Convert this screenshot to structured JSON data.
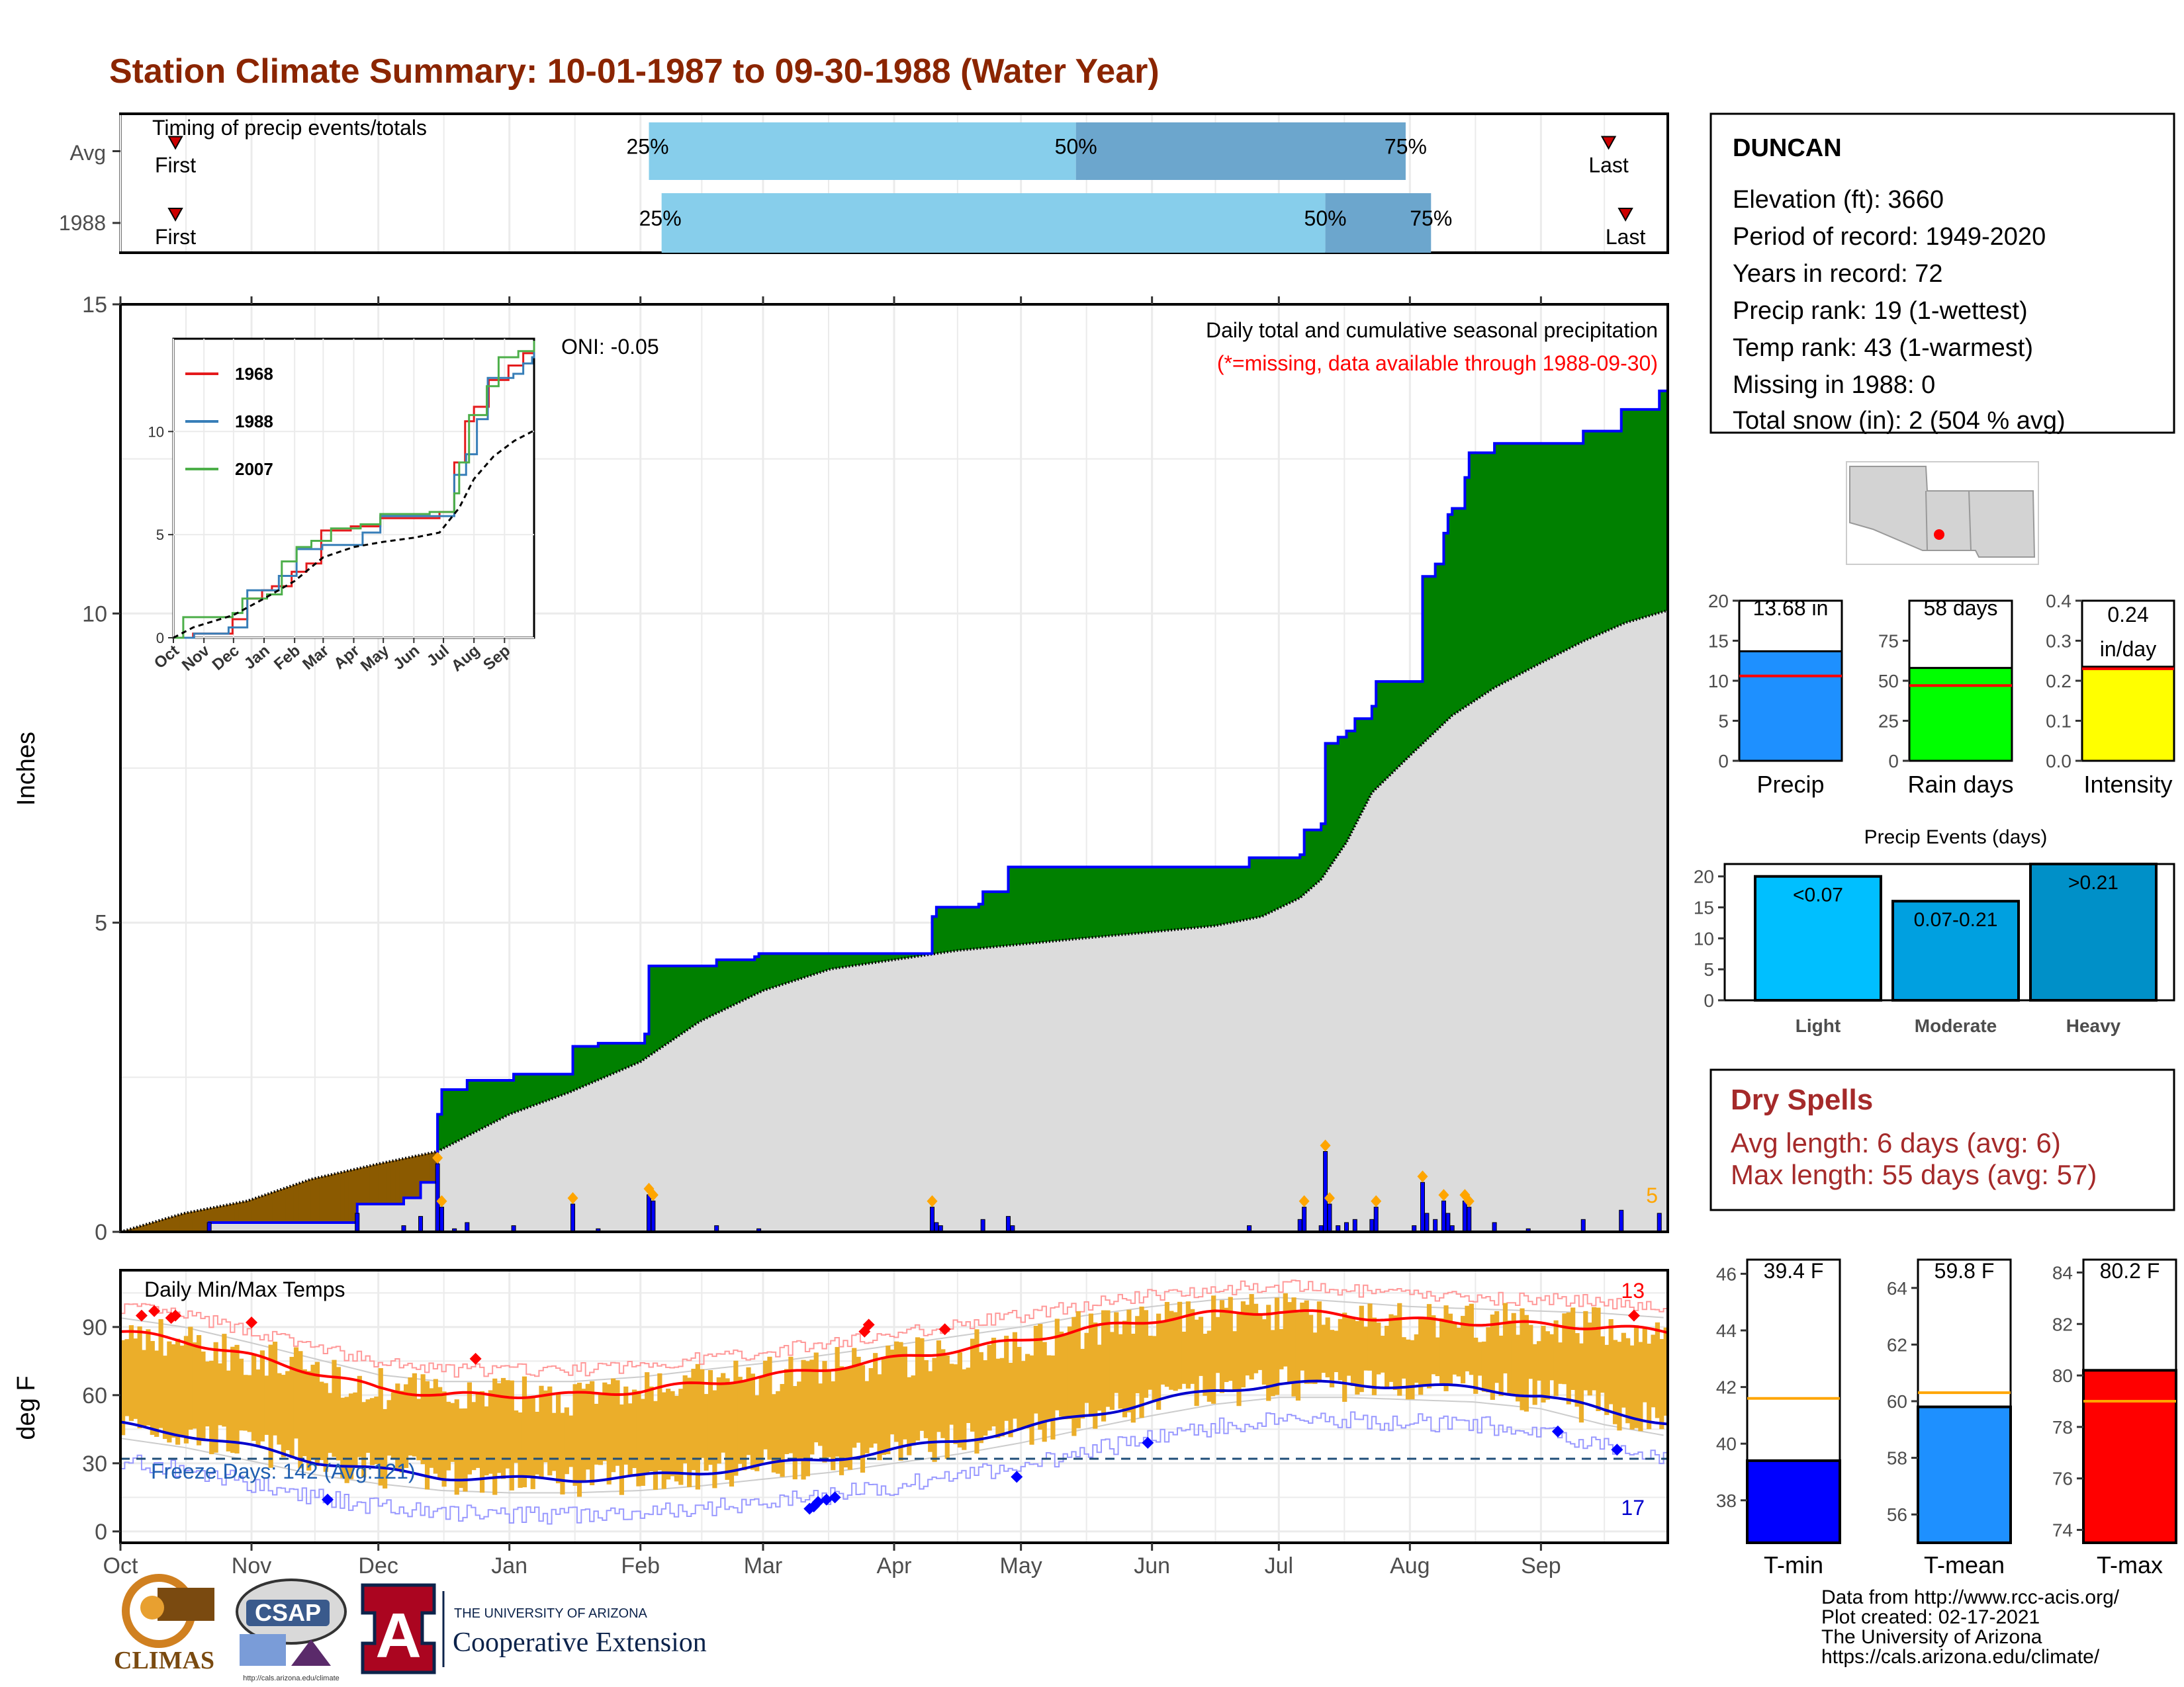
{
  "title": "Station Climate Summary: 10-01-1987 to 09-30-1988 (Water Year)",
  "colors": {
    "title": "#8B2500",
    "precip_obs": "#0000FF",
    "avg_fill": "#DCDCDC",
    "surplus": "#008000",
    "deficit": "#8B5A00",
    "temp_bars": "#EBAE2A",
    "tmax_avg": "#FF0000",
    "tmin_avg": "#0000CD",
    "dry_spells": "#A52A2A"
  },
  "timing_panel": {
    "title": "Timing of precip events/totals",
    "rows": [
      {
        "label": "Avg",
        "first": "First",
        "last": "Last",
        "p25_label": "25%",
        "p50_label": "50%",
        "p75_label": "75%",
        "first_day": 13,
        "p25_day": 125,
        "p50_day": 226,
        "p75_day": 304,
        "last_day": 352
      },
      {
        "label": "1988",
        "first": "First",
        "last": "Last",
        "p25_label": "25%",
        "p50_label": "50%",
        "p75_label": "75%",
        "first_day": 13,
        "p25_day": 128,
        "p50_day": 285,
        "p75_day": 310,
        "last_day": 356
      }
    ]
  },
  "precip_chart": {
    "ylabel": "Inches",
    "yticks": [
      "0",
      "5",
      "10",
      "15"
    ],
    "ylim": [
      0,
      15
    ],
    "title_line1": "Daily total and cumulative seasonal precipitation",
    "title_line2": "(*=missing, data available through 1988-09-30)",
    "oni": "ONI: -0.05",
    "corner_number": "5"
  },
  "month_labels": [
    "Oct",
    "Nov",
    "Dec",
    "Jan",
    "Feb",
    "Mar",
    "Apr",
    "May",
    "Jun",
    "Jul",
    "Aug",
    "Sep"
  ],
  "month_start_days": [
    0,
    31,
    61,
    92,
    123,
    152,
    183,
    213,
    244,
    274,
    305,
    336
  ],
  "inset": {
    "legend": [
      "1968",
      "1988",
      "2007"
    ],
    "legend_colors": [
      "#E41A1C",
      "#377EB8",
      "#4DAF4A"
    ],
    "yticks": [
      "0",
      "5",
      "10"
    ],
    "xticks": [
      "Oct",
      "Nov",
      "Dec",
      "Jan",
      "Feb",
      "Mar",
      "Apr",
      "May",
      "Jun",
      "Jul",
      "Aug",
      "Sep"
    ]
  },
  "temp_chart": {
    "title": "Daily Min/Max Temps",
    "ylabel": "deg F",
    "yticks": [
      "0",
      "30",
      "60",
      "90"
    ],
    "ylim": [
      -5,
      115
    ],
    "freeze_label": "Freeze Days: 142 (Avg:121)",
    "freeze_line": 32,
    "count_high": "13",
    "count_low": "17"
  },
  "station": {
    "name": "DUNCAN",
    "lines": [
      "Elevation (ft): 3660",
      "Period of record: 1949-2020",
      "Years in record: 72",
      "Precip rank: 19 (1-wettest)",
      "Temp rank: 43 (1-warmest)",
      "Missing in 1988: 0",
      "Total snow (in): 2 (504 % avg)"
    ]
  },
  "mini_bars": [
    {
      "label": "Precip",
      "value_text": "13.68 in",
      "value": 13.68,
      "avg": 10.6,
      "yticks": [
        "0",
        "5",
        "10",
        "15",
        "20"
      ],
      "ylim": [
        0,
        20
      ],
      "color": "#1E90FF"
    },
    {
      "label": "Rain days",
      "value_text": "58 days",
      "value": 58,
      "avg": 47,
      "yticks": [
        "0",
        "25",
        "50",
        "75"
      ],
      "ylim": [
        0,
        100
      ],
      "color": "#00FF00"
    },
    {
      "label": "Intensity",
      "value_text_1": "0.24",
      "value_text_2": "in/day",
      "value": 0.235,
      "avg": 0.23,
      "yticks": [
        "0.0",
        "0.1",
        "0.2",
        "0.3",
        "0.4"
      ],
      "ylim": [
        0,
        0.4
      ],
      "color": "#FFFF00"
    }
  ],
  "precip_events": {
    "title": "Precip Events (days)",
    "yticks": [
      "0",
      "5",
      "10",
      "15",
      "20"
    ],
    "ylim": [
      0,
      22
    ],
    "categories": [
      "Light",
      "Moderate",
      "Heavy"
    ],
    "bar_labels": [
      "<0.07",
      "0.07-0.21",
      ">0.21"
    ],
    "values": [
      20,
      16,
      22
    ],
    "colors": [
      "#00BFFF",
      "#00A0E0",
      "#0090C8"
    ]
  },
  "dry_spells": {
    "title": "Dry Spells",
    "line1": "Avg length: 6 days (avg: 6)",
    "line2": "Max length: 55 days (avg: 57)"
  },
  "temp_bars": [
    {
      "label": "T-min",
      "value_text": "39.4 F",
      "value": 39.4,
      "avg": 41.6,
      "yticks": [
        "38",
        "40",
        "42",
        "44",
        "46"
      ],
      "ylim": [
        36.5,
        46.5
      ],
      "color": "#0000FF"
    },
    {
      "label": "T-mean",
      "value_text": "59.8 F",
      "value": 59.8,
      "avg": 60.3,
      "yticks": [
        "56",
        "58",
        "60",
        "62",
        "64"
      ],
      "ylim": [
        55,
        65
      ],
      "color": "#1E90FF"
    },
    {
      "label": "T-max",
      "value_text": "80.2 F",
      "value": 80.2,
      "avg": 79.0,
      "yticks": [
        "74",
        "76",
        "78",
        "80",
        "82",
        "84"
      ],
      "ylim": [
        73.5,
        84.5
      ],
      "color": "#FF0000"
    }
  ],
  "footer": {
    "lines": [
      "Data from http://www.rcc-acis.org/",
      "Plot created: 02-17-2021",
      "The University of Arizona",
      "https://cals.arizona.edu/climate/"
    ],
    "logo_climas": "CLIMAS",
    "logo_csap": "CSAP",
    "logo_csap_url": "http://cals.arizona.edu/climate",
    "ua_line1": "THE UNIVERSITY OF ARIZONA",
    "ua_line2": "Cooperative Extension",
    "ua_letter": "A"
  },
  "chart_data": [
    {
      "type": "area",
      "title": "Daily total and cumulative seasonal precipitation",
      "ylabel": "Inches",
      "ylim": [
        0,
        15
      ],
      "x_unit": "day of water year (0 = Oct 1)",
      "series": [
        {
          "name": "cumulative observed",
          "points": [
            [
              0,
              0
            ],
            [
              20,
              0.0
            ],
            [
              21,
              0.15
            ],
            [
              55,
              0.15
            ],
            [
              56,
              0.45
            ],
            [
              66,
              0.45
            ],
            [
              67,
              0.55
            ],
            [
              71,
              0.8
            ],
            [
              75,
              1.9
            ],
            [
              76,
              2.3
            ],
            [
              81,
              2.3
            ],
            [
              82,
              2.45
            ],
            [
              92,
              2.45
            ],
            [
              93,
              2.55
            ],
            [
              106,
              2.55
            ],
            [
              107,
              3.0
            ],
            [
              113,
              3.05
            ],
            [
              124,
              3.2
            ],
            [
              125,
              4.3
            ],
            [
              140,
              4.3
            ],
            [
              141,
              4.4
            ],
            [
              150,
              4.45
            ],
            [
              151,
              4.5
            ],
            [
              191,
              4.5
            ],
            [
              192,
              5.1
            ],
            [
              193,
              5.25
            ],
            [
              203,
              5.3
            ],
            [
              204,
              5.5
            ],
            [
              209,
              5.5
            ],
            [
              210,
              5.9
            ],
            [
              266,
              5.9
            ],
            [
              267,
              6.05
            ],
            [
              279,
              6.1
            ],
            [
              280,
              6.5
            ],
            [
              284,
              6.6
            ],
            [
              285,
              7.9
            ],
            [
              288,
              8.0
            ],
            [
              290,
              8.1
            ],
            [
              292,
              8.3
            ],
            [
              296,
              8.5
            ],
            [
              297,
              8.9
            ],
            [
              307,
              8.9
            ],
            [
              308,
              10.6
            ],
            [
              311,
              10.8
            ],
            [
              313,
              11.3
            ],
            [
              314,
              11.6
            ],
            [
              315,
              11.7
            ],
            [
              318,
              12.2
            ],
            [
              319,
              12.6
            ],
            [
              325,
              12.75
            ],
            [
              345,
              12.75
            ],
            [
              346,
              12.95
            ],
            [
              354,
              12.95
            ],
            [
              355,
              13.3
            ],
            [
              363,
              13.3
            ],
            [
              364,
              13.6
            ],
            [
              366,
              13.6
            ]
          ]
        },
        {
          "name": "cumulative average",
          "points": [
            [
              0,
              0
            ],
            [
              15,
              0.3
            ],
            [
              30,
              0.5
            ],
            [
              45,
              0.85
            ],
            [
              61,
              1.1
            ],
            [
              75,
              1.3
            ],
            [
              92,
              1.9
            ],
            [
              106,
              2.25
            ],
            [
              123,
              2.75
            ],
            [
              137,
              3.4
            ],
            [
              152,
              3.9
            ],
            [
              168,
              4.25
            ],
            [
              183,
              4.4
            ],
            [
              198,
              4.55
            ],
            [
              213,
              4.65
            ],
            [
              228,
              4.75
            ],
            [
              244,
              4.85
            ],
            [
              259,
              4.95
            ],
            [
              270,
              5.1
            ],
            [
              279,
              5.4
            ],
            [
              284,
              5.7
            ],
            [
              290,
              6.3
            ],
            [
              296,
              7.1
            ],
            [
              305,
              7.7
            ],
            [
              315,
              8.35
            ],
            [
              325,
              8.8
            ],
            [
              336,
              9.2
            ],
            [
              346,
              9.55
            ],
            [
              356,
              9.85
            ],
            [
              366,
              10.05
            ]
          ]
        },
        {
          "name": "daily precip",
          "points": [
            [
              21,
              0.15
            ],
            [
              56,
              0.3
            ],
            [
              67,
              0.1
            ],
            [
              71,
              0.25
            ],
            [
              75,
              1.1
            ],
            [
              76,
              0.4
            ],
            [
              79,
              0.05
            ],
            [
              82,
              0.15
            ],
            [
              93,
              0.1
            ],
            [
              107,
              0.45
            ],
            [
              113,
              0.05
            ],
            [
              125,
              0.6
            ],
            [
              126,
              0.5
            ],
            [
              141,
              0.1
            ],
            [
              151,
              0.05
            ],
            [
              192,
              0.4
            ],
            [
              193,
              0.15
            ],
            [
              194,
              0.1
            ],
            [
              204,
              0.2
            ],
            [
              210,
              0.25
            ],
            [
              211,
              0.1
            ],
            [
              267,
              0.1
            ],
            [
              279,
              0.2
            ],
            [
              280,
              0.4
            ],
            [
              284,
              0.1
            ],
            [
              285,
              1.3
            ],
            [
              286,
              0.45
            ],
            [
              288,
              0.1
            ],
            [
              290,
              0.15
            ],
            [
              292,
              0.2
            ],
            [
              296,
              0.2
            ],
            [
              297,
              0.4
            ],
            [
              306,
              0.1
            ],
            [
              308,
              0.8
            ],
            [
              309,
              0.3
            ],
            [
              311,
              0.2
            ],
            [
              313,
              0.5
            ],
            [
              314,
              0.3
            ],
            [
              315,
              0.1
            ],
            [
              318,
              0.5
            ],
            [
              319,
              0.4
            ],
            [
              325,
              0.15
            ],
            [
              333,
              0.05
            ],
            [
              346,
              0.2
            ],
            [
              355,
              0.35
            ],
            [
              364,
              0.3
            ]
          ]
        }
      ]
    },
    {
      "type": "line",
      "title": "Daily Min/Max Temps",
      "ylabel": "deg F",
      "ylim": [
        -5,
        115
      ],
      "series": [
        {
          "name": "avg max",
          "points": [
            [
              0,
              88
            ],
            [
              15,
              84
            ],
            [
              31,
              77
            ],
            [
              46,
              70
            ],
            [
              61,
              63
            ],
            [
              76,
              60
            ],
            [
              92,
              60
            ],
            [
              107,
              60
            ],
            [
              123,
              62
            ],
            [
              137,
              65
            ],
            [
              152,
              68
            ],
            [
              168,
              72
            ],
            [
              183,
              76
            ],
            [
              198,
              80
            ],
            [
              213,
              84
            ],
            [
              228,
              89
            ],
            [
              244,
              93
            ],
            [
              259,
              96
            ],
            [
              274,
              97
            ],
            [
              290,
              95
            ],
            [
              305,
              93
            ],
            [
              320,
              92
            ],
            [
              336,
              91
            ],
            [
              351,
              90
            ],
            [
              366,
              88
            ]
          ]
        },
        {
          "name": "avg min",
          "points": [
            [
              0,
              47
            ],
            [
              15,
              43
            ],
            [
              31,
              37
            ],
            [
              46,
              31
            ],
            [
              61,
              27
            ],
            [
              76,
              24
            ],
            [
              92,
              23
            ],
            [
              107,
              23
            ],
            [
              123,
              24
            ],
            [
              137,
              26
            ],
            [
              152,
              29
            ],
            [
              168,
              32
            ],
            [
              183,
              36
            ],
            [
              198,
              40
            ],
            [
              213,
              45
            ],
            [
              228,
              51
            ],
            [
              244,
              57
            ],
            [
              259,
              62
            ],
            [
              274,
              65
            ],
            [
              290,
              65
            ],
            [
              305,
              64
            ],
            [
              320,
              63
            ],
            [
              336,
              60
            ],
            [
              351,
              53
            ],
            [
              366,
              48
            ]
          ]
        }
      ]
    },
    {
      "type": "bar",
      "title": "Precip Events (days)",
      "categories": [
        "Light",
        "Moderate",
        "Heavy"
      ],
      "values": [
        20,
        16,
        22
      ]
    }
  ]
}
